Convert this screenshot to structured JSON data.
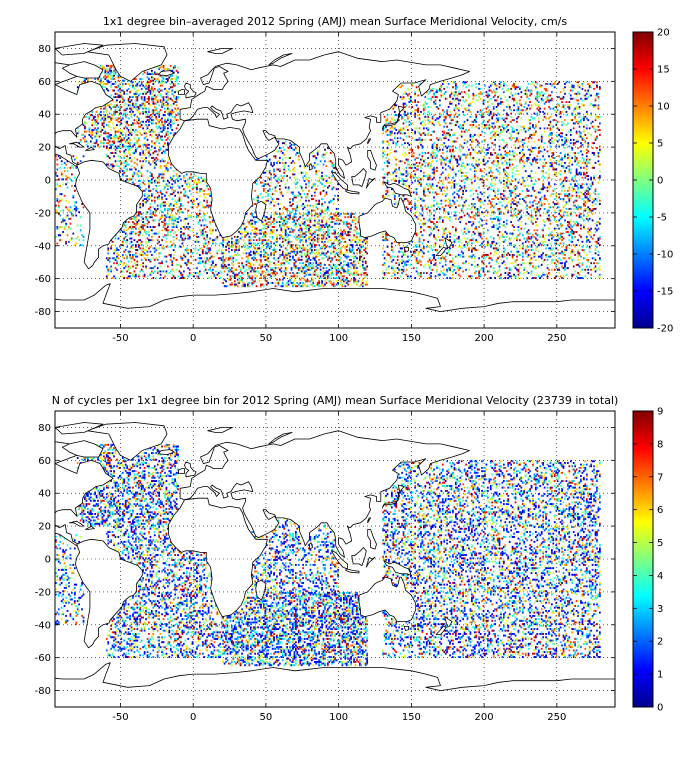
{
  "figure": {
    "background": "#ffffff",
    "land_outline_color": "#000000",
    "ocean_color": "#ffffff",
    "gridline_style": "dotted"
  },
  "chart_data": [
    {
      "type": "heatmap",
      "title": "1x1 degree bin–averaged 2012 Spring (AMJ) mean Surface Meridional Velocity, cm/s",
      "xlabel": "",
      "ylabel": "",
      "xlim": [
        -95,
        290
      ],
      "ylim": [
        -90,
        90
      ],
      "xticks": [
        -50,
        0,
        50,
        100,
        150,
        200,
        250
      ],
      "yticks": [
        -80,
        -60,
        -40,
        -20,
        0,
        20,
        40,
        60,
        80
      ],
      "grid": true,
      "colormap": "jet",
      "colorbar": {
        "min": -20,
        "max": 20,
        "ticks": [
          -20,
          -15,
          -10,
          -5,
          0,
          5,
          10,
          15,
          20
        ]
      },
      "seed": 7,
      "value_range": [
        -20,
        20
      ],
      "sampling": [
        {
          "lon": [
            -80,
            -10
          ],
          "lat": [
            20,
            70
          ],
          "density": 0.35
        },
        {
          "lon": [
            -60,
            20
          ],
          "lat": [
            -60,
            20
          ],
          "density": 0.25
        },
        {
          "lon": [
            20,
            120
          ],
          "lat": [
            -65,
            -20
          ],
          "density": 0.35
        },
        {
          "lon": [
            40,
            100
          ],
          "lat": [
            -20,
            25
          ],
          "density": 0.2
        },
        {
          "lon": [
            130,
            280
          ],
          "lat": [
            -60,
            60
          ],
          "density": 0.22
        },
        {
          "lon": [
            -95,
            -75
          ],
          "lat": [
            -40,
            15
          ],
          "density": 0.15
        }
      ]
    },
    {
      "type": "heatmap",
      "title": "N of cycles per 1x1 degree bin for 2012 Spring (AMJ) mean Surface Meridional Velocity (23739 in total)",
      "xlabel": "",
      "ylabel": "",
      "xlim": [
        -95,
        290
      ],
      "ylim": [
        -90,
        90
      ],
      "xticks": [
        -50,
        0,
        50,
        100,
        150,
        200,
        250
      ],
      "yticks": [
        -80,
        -60,
        -40,
        -20,
        0,
        20,
        40,
        60,
        80
      ],
      "grid": true,
      "colormap": "jet",
      "colorbar": {
        "min": 0,
        "max": 9,
        "ticks": [
          0,
          1,
          2,
          3,
          4,
          5,
          6,
          7,
          8,
          9
        ]
      },
      "seed": 11,
      "value_range": [
        0,
        9
      ],
      "sampling": [
        {
          "lon": [
            -80,
            -10
          ],
          "lat": [
            20,
            70
          ],
          "density": 0.35
        },
        {
          "lon": [
            -60,
            20
          ],
          "lat": [
            -60,
            20
          ],
          "density": 0.3
        },
        {
          "lon": [
            20,
            120
          ],
          "lat": [
            -65,
            -20
          ],
          "density": 0.45
        },
        {
          "lon": [
            40,
            100
          ],
          "lat": [
            -20,
            25
          ],
          "density": 0.25
        },
        {
          "lon": [
            130,
            280
          ],
          "lat": [
            -60,
            60
          ],
          "density": 0.28
        },
        {
          "lon": [
            -95,
            -75
          ],
          "lat": [
            -40,
            15
          ],
          "density": 0.15
        }
      ]
    }
  ]
}
